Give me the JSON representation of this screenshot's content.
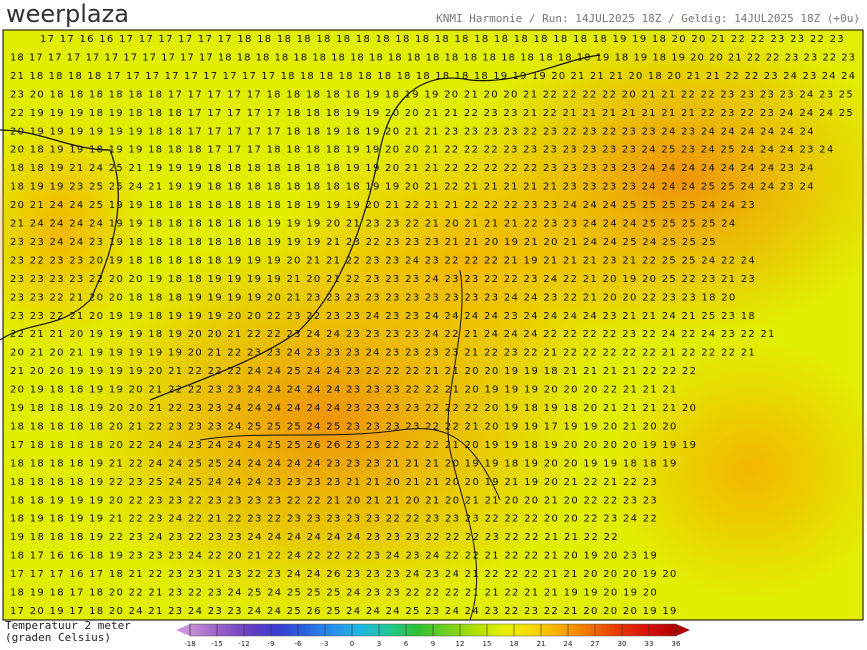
{
  "header": {
    "logo": "weerplaza",
    "title": "KNMI Harmonie / Run: 14JUL2025 18Z / Geldig: 14JUL2025 18Z (+0u)"
  },
  "map": {
    "rows": [
      "17 17 16 16 17 17 17 17 17 17 18 18 18 18 18 18 18 18 18 18 18 18 18 18 18 18 18 18 18 19 19 18 20 20 21 22 22 23 23 22 23",
      "18 17 17 17 17 17 17 17 17 17 17 18 18 18 18 18 18 18 18 18 18 18 18 18 18 18 18 18 18 18 18 19 18 19 18 19 20 20 21 22 22 23 23 22 23",
      "21 18 18 18 18 17 17 17 17 17 17 17 17 17 18 18 18 18 18 18 18 18 18 18 18 19 19 19 20 21 21 21 20 18 20 21 21 22 22 23 24 23 24 24",
      "23 20 18 18 18 18 18 18 17 17 17 17 17 18 18 18 18 18 19 18 19 19 20 21 20 20 21 22 22 22 22 20 21 21 22 22 23 23 23 23 24 23 25",
      "22 19 19 19 18 19 18 18 18 17 17 17 17 17 18 18 18 19 19 20 20 21 21 22 23 23 21 22 21 21 21 21 21 21 21 22 23 22 23 24 24 24 25",
      "20 19 19 19 19 19 19 18 18 17 17 17 17 17 18 18 19 18 19 20 21 21 23 23 23 23 22 23 22 23 22 23 23 24 23 24 24 24 24 24 24",
      "20 18 19 19 18 19 19 18 18 18 17 17 17 18 18 18 18 19 19 20 20 21 22 22 22 23 23 23 23 23 23 23 24 25 23 24 25 24 24 24 23 24",
      "18 18 19 21 24 25 21 19 19 19 18 18 18 18 18 18 18 19 19 20 21 21 22 22 22 22 22 23 23 23 23 23 24 24 24 24 24 24 24 23 24",
      "18 19 19 23 25 25 24 21 19 19 18 18 18 18 18 18 18 18 19 19 20 21 22 21 21 21 21 21 23 23 23 23 24 24 24 25 25 24 24 23 24",
      "20 21 24 24 25 19 19 18 18 18 18 18 18 18 18 19 19 19 20 21 22 21 21 22 22 22 23 23 24 24 24 25 25 25 25 24 24 23",
      "21 24 24 24 24 19 19 18 18 18 18 18 18 19 19 19 20 21 23 23 22 21 20 21 21 21 22 23 23 24 24 24 25 25 25 25 24",
      "23 23 24 24 23 19 18 18 18 18 18 18 18 19 19 19 21 23 22 23 23 23 21 21 20 19 21 20 21 24 24 25 24 25 25 25",
      "23 22 23 23 20 19 18 18 18 18 18 19 19 19 20 21 21 22 23 23 24 23 22 22 22 21 19 21 21 21 23 21 22 25 25 24 22 24",
      "23 23 23 23 22 20 20 19 18 18 19 19 19 19 21 20 21 22 23 23 23 24 23 23 22 22 23 24 22 21 20 19 20 25 22 23 21 23",
      "23 23 22 21 20 20 18 18 18 19 19 19 19 20 21 23 23 23 23 23 23 23 23 23 23 24 24 23 22 21 20 20 22 23 23 18 20",
      "23 23 22 21 20 19 19 18 19 19 19 20 20 22 23 22 23 23 24 23 23 24 24 24 24 23 24 24 24 24 23 21 21 24 21 25 23 18",
      "22 21 21 20 19 19 19 18 19 20 20 21 22 22 23 24 24 23 23 23 23 24 22 21 24 24 24 22 22 22 22 23 22 24 22 24 23 22 21",
      "20 21 20 21 19 19 19 19 19 20 21 22 23 23 24 23 23 23 24 23 23 23 23 21 22 23 22 21 22 22 22 22 22 21 22 22 22 21",
      "21 20 20 19 19 19 19 20 21 22 22 22 24 24 25 24 24 23 22 22 22 21 21 20 20 19 19 18 21 21 21 21 22 22 22",
      "20 19 18 18 19 19 20 21 22 22 23 23 24 24 24 24 24 23 23 23 22 22 21 20 19 19 19 20 20 20 22 21 21 21",
      "19 18 18 18 19 20 20 21 22 23 23 24 24 24 24 24 24 23 23 23 23 22 22 22 20 19 18 19 18 20 21 21 21 21 20",
      "18 18 18 18 18 20 21 22 23 23 23 24 25 25 25 24 25 23 23 23 23 22 22 21 20 19 19 17 19 19 20 21 20 20",
      "17 18 18 18 18 20 22 24 24 23 24 24 24 25 25 26 26 23 23 22 22 22 21 20 19 19 18 19 20 20 20 20 19 19 19",
      "18 18 18 18 19 21 22 24 24 25 25 24 24 24 24 24 23 23 23 21 21 21 20 19 19 18 19 20 20 19 19 18 18 19",
      "18 18 18 18 19 22 23 25 24 25 24 24 24 23 23 23 23 21 21 20 21 21 20 20 19 21 19 20 21 22 21 22 23",
      "18 18 19 19 19 20 22 23 23 22 23 23 23 23 22 22 21 20 21 21 20 21 20 21 21 20 20 21 20 22 22 23 23",
      "18 19 18 19 19 21 22 23 24 22 21 22 23 22 23 23 23 23 23 22 22 23 23 23 22 22 22 20 20 22 23 24 22",
      "19 18 18 18 19 22 23 24 23 22 23 23 24 24 24 24 24 24 23 23 23 22 22 22 23 22 22 21 21 22 22",
      "18 17 16 16 18 19 23 23 23 24 22 20 21 22 24 22 22 22 23 24 23 24 22 22 21 22 22 21 20 19 20 23 19",
      "17 17 17 16 17 18 21 22 23 23 21 23 22 23 24 24 26 23 23 23 24 23 24 21 22 22 22 21 21 20 20 20 19 20",
      "18 19 18 17 18 20 22 21 23 22 23 24 25 24 25 25 25 24 23 23 22 22 22 21 21 22 21 21 19 19 20 19 20",
      "17 20 19 17 18 20 24 21 23 24 23 23 24 24 25 26 25 24 24 24 25 23 24 24 23 22 23 22 21 20 20 20 19 19"
    ]
  },
  "legend": {
    "label_lines": [
      "Temperatuur 2 meter",
      "(graden Celsius)"
    ],
    "ticks": [
      -18,
      -15,
      -12,
      -9,
      -6,
      -3,
      0,
      3,
      6,
      9,
      12,
      15,
      18,
      21,
      24,
      27,
      30,
      33,
      36
    ],
    "colors": [
      "#c890d8",
      "#9a5fc8",
      "#6a40c0",
      "#3c3cd0",
      "#2a60e0",
      "#2890e8",
      "#20b8e0",
      "#20c890",
      "#30c030",
      "#70d020",
      "#b0e000",
      "#e8f000",
      "#f8d800",
      "#f8a800",
      "#f07000",
      "#e83800",
      "#d81010",
      "#b00000"
    ]
  }
}
